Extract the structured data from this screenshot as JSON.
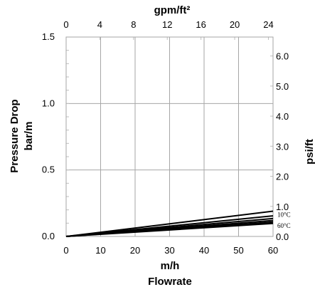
{
  "chart_data": {
    "type": "line",
    "title": "",
    "xlabel": "m/h",
    "xlabel2": "Flowrate",
    "ylabel": "Pressure Drop",
    "ylabel2": "bar/m",
    "x2label": "gpm/ft²",
    "y2label": "psi/ft",
    "xlim": [
      0,
      60
    ],
    "ylim": [
      0,
      1.5
    ],
    "x2lim": [
      0,
      24.55
    ],
    "y2lim": [
      0,
      6.63
    ],
    "x_ticks": [
      "0",
      "10",
      "20",
      "30",
      "40",
      "50",
      "60"
    ],
    "y_ticks": [
      "0.0",
      "0.5",
      "1.0",
      "1.5"
    ],
    "x2_ticks": [
      "0",
      "4",
      "8",
      "12",
      "16",
      "20",
      "24"
    ],
    "y2_ticks": [
      "0.0",
      "1.0",
      "2.0",
      "3.0",
      "4.0",
      "5.0",
      "6.0"
    ],
    "grid": true,
    "annotations": [
      {
        "text": "10°C",
        "x": 60,
        "y": 0.17
      },
      {
        "text": "60°C",
        "x": 60,
        "y": 0.085
      }
    ],
    "series": [
      {
        "x": [
          0,
          60
        ],
        "y": [
          0,
          0.19
        ]
      },
      {
        "x": [
          0,
          60
        ],
        "y": [
          0,
          0.155
        ]
      },
      {
        "x": [
          0,
          60
        ],
        "y": [
          0,
          0.135
        ]
      },
      {
        "x": [
          0,
          60
        ],
        "y": [
          0,
          0.12
        ]
      },
      {
        "x": [
          0,
          60
        ],
        "y": [
          0,
          0.108
        ]
      },
      {
        "x": [
          0,
          60
        ],
        "y": [
          0,
          0.098
        ]
      }
    ]
  }
}
